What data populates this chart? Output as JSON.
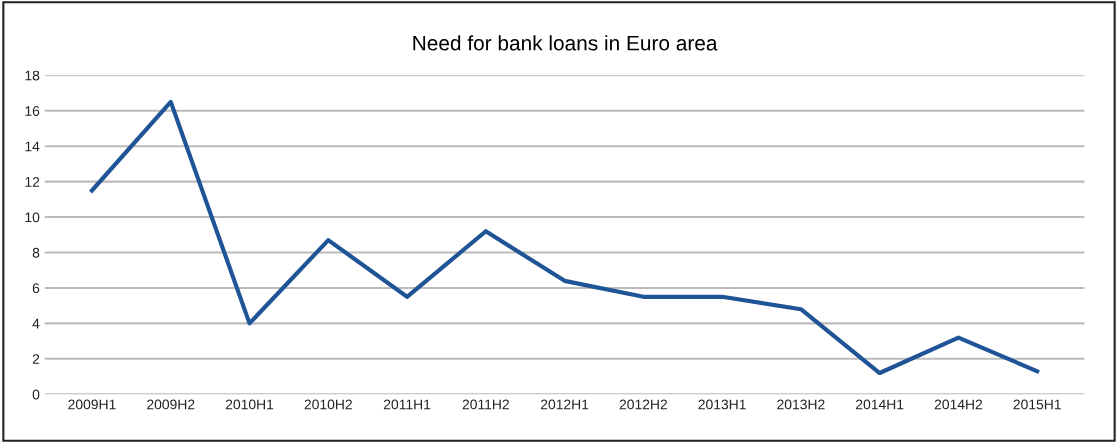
{
  "chart_data": {
    "type": "line",
    "title": "Need for bank loans in Euro area",
    "categories": [
      "2009H1",
      "2009H2",
      "2010H1",
      "2010H2",
      "2011H1",
      "2011H2",
      "2012H1",
      "2012H2",
      "2013H1",
      "2013H2",
      "2014H1",
      "2014H2",
      "2015H1"
    ],
    "series": [
      {
        "color": "#1f5597",
        "values": [
          11.5,
          16.5,
          4.0,
          8.7,
          5.5,
          9.2,
          6.4,
          5.5,
          5.5,
          4.8,
          1.2,
          3.2,
          1.3
        ]
      }
    ],
    "ylim": [
      0,
      18
    ],
    "yticks": [
      0,
      2,
      4,
      6,
      8,
      10,
      12,
      14,
      16,
      18
    ],
    "grid": "y",
    "legend": false,
    "marker": "none",
    "line_style": "solid"
  }
}
